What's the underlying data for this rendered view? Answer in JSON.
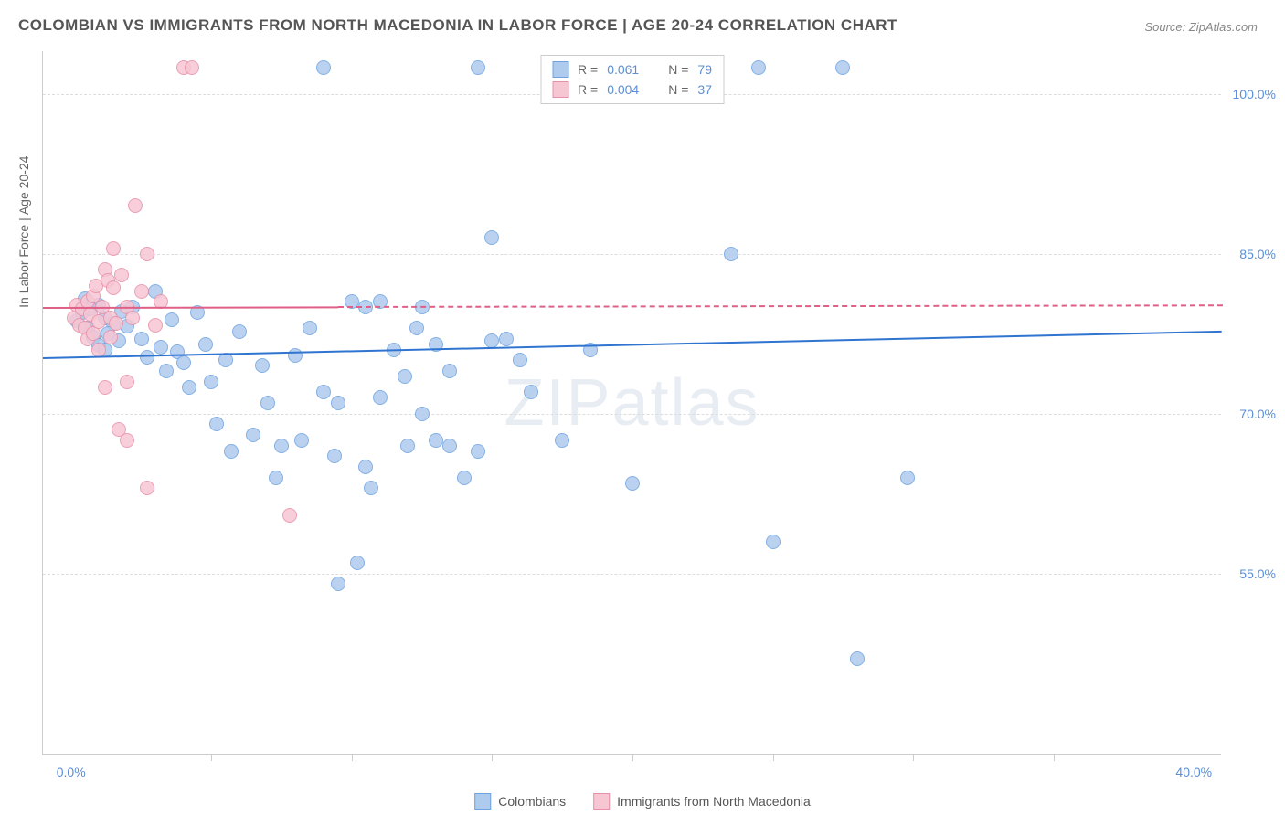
{
  "title": "COLOMBIAN VS IMMIGRANTS FROM NORTH MACEDONIA IN LABOR FORCE | AGE 20-24 CORRELATION CHART",
  "source": "Source: ZipAtlas.com",
  "watermark": "ZIPatlas",
  "yaxis_title": "In Labor Force | Age 20-24",
  "chart": {
    "type": "scatter",
    "background_color": "#ffffff",
    "grid_color": "#dddddd",
    "axis_color": "#cccccc",
    "label_color": "#5b8fd6",
    "title_color": "#555555",
    "title_fontsize": 17,
    "label_fontsize": 14,
    "xlim": [
      -1,
      41
    ],
    "ylim": [
      38,
      104
    ],
    "x_ticks": [
      0,
      40
    ],
    "x_tick_labels": [
      "0.0%",
      "40.0%"
    ],
    "x_minor_ticks": [
      5,
      10,
      15,
      20,
      25,
      30,
      35
    ],
    "y_ticks": [
      55,
      70,
      85,
      100
    ],
    "y_tick_labels": [
      "55.0%",
      "70.0%",
      "85.0%",
      "100.0%"
    ],
    "marker_radius": 8,
    "marker_border_width": 1.5,
    "marker_fill_opacity": 0.35
  },
  "series": [
    {
      "name": "Colombians",
      "color_border": "#6fa3e0",
      "color_fill": "#aecbee",
      "R": "0.061",
      "N": "79",
      "trend": {
        "x0": -1,
        "y0": 75.3,
        "x1": 41,
        "y1": 77.8,
        "solid_until_x": 41,
        "color": "#2f74d0"
      },
      "points": [
        [
          0.2,
          78.7
        ],
        [
          0.4,
          79.5
        ],
        [
          0.6,
          78.0
        ],
        [
          0.8,
          77.2
        ],
        [
          1.0,
          76.4
        ],
        [
          1.2,
          79.0
        ],
        [
          1.0,
          80.2
        ],
        [
          1.5,
          78.5
        ],
        [
          1.2,
          76.0
        ],
        [
          1.7,
          76.8
        ],
        [
          1.8,
          79.6
        ],
        [
          2.0,
          78.2
        ],
        [
          2.2,
          80.0
        ],
        [
          2.5,
          77.0
        ],
        [
          2.7,
          75.3
        ],
        [
          3.0,
          81.5
        ],
        [
          3.2,
          76.2
        ],
        [
          3.4,
          74.0
        ],
        [
          3.6,
          78.8
        ],
        [
          3.8,
          75.8
        ],
        [
          4.0,
          74.8
        ],
        [
          4.2,
          72.5
        ],
        [
          4.5,
          79.5
        ],
        [
          4.8,
          76.5
        ],
        [
          5.0,
          73.0
        ],
        [
          5.2,
          69.0
        ],
        [
          5.5,
          75.0
        ],
        [
          5.7,
          66.5
        ],
        [
          6.0,
          77.7
        ],
        [
          6.5,
          68.0
        ],
        [
          6.8,
          74.5
        ],
        [
          7.0,
          71.0
        ],
        [
          7.3,
          64.0
        ],
        [
          7.5,
          67.0
        ],
        [
          8.0,
          75.5
        ],
        [
          8.2,
          67.5
        ],
        [
          8.5,
          78.0
        ],
        [
          9.0,
          72.0
        ],
        [
          9.0,
          102.5
        ],
        [
          9.4,
          66.0
        ],
        [
          9.5,
          71.0
        ],
        [
          9.5,
          54.0
        ],
        [
          10.0,
          80.5
        ],
        [
          10.2,
          56.0
        ],
        [
          10.5,
          65.0
        ],
        [
          10.5,
          80.0
        ],
        [
          10.7,
          63.0
        ],
        [
          11.0,
          80.5
        ],
        [
          11.0,
          71.5
        ],
        [
          11.5,
          76.0
        ],
        [
          11.9,
          73.5
        ],
        [
          12.0,
          67.0
        ],
        [
          12.3,
          78.0
        ],
        [
          12.5,
          80.0
        ],
        [
          12.5,
          70.0
        ],
        [
          13.0,
          67.5
        ],
        [
          13.0,
          76.5
        ],
        [
          13.5,
          74.0
        ],
        [
          13.5,
          67.0
        ],
        [
          14.0,
          64.0
        ],
        [
          14.5,
          66.5
        ],
        [
          14.5,
          102.5
        ],
        [
          15.0,
          76.8
        ],
        [
          15.0,
          86.5
        ],
        [
          15.5,
          77.0
        ],
        [
          16.0,
          75.0
        ],
        [
          16.4,
          72.0
        ],
        [
          17.5,
          67.5
        ],
        [
          18.5,
          76.0
        ],
        [
          20.0,
          63.5
        ],
        [
          23.5,
          85.0
        ],
        [
          24.5,
          102.5
        ],
        [
          25.0,
          58.0
        ],
        [
          27.5,
          102.5
        ],
        [
          28.0,
          47.0
        ],
        [
          29.8,
          64.0
        ],
        [
          0.5,
          80.8
        ],
        [
          0.7,
          79.8
        ],
        [
          1.3,
          77.5
        ]
      ]
    },
    {
      "name": "Immigrants from North Macedonia",
      "color_border": "#e890a8",
      "color_fill": "#f6c6d3",
      "R": "0.004",
      "N": "37",
      "trend": {
        "x0": -1,
        "y0": 80.0,
        "x1": 41,
        "y1": 80.2,
        "solid_until_x": 9.5,
        "color": "#e05f86"
      },
      "points": [
        [
          0.1,
          79.0
        ],
        [
          0.2,
          80.2
        ],
        [
          0.3,
          78.3
        ],
        [
          0.4,
          79.8
        ],
        [
          0.5,
          78.0
        ],
        [
          0.6,
          80.5
        ],
        [
          0.6,
          77.0
        ],
        [
          0.7,
          79.3
        ],
        [
          0.8,
          81.0
        ],
        [
          0.8,
          77.5
        ],
        [
          0.9,
          82.0
        ],
        [
          1.0,
          78.6
        ],
        [
          1.0,
          76.0
        ],
        [
          1.1,
          80.0
        ],
        [
          1.2,
          83.5
        ],
        [
          1.2,
          72.5
        ],
        [
          1.3,
          82.5
        ],
        [
          1.4,
          79.0
        ],
        [
          1.5,
          81.8
        ],
        [
          1.5,
          85.5
        ],
        [
          1.6,
          78.5
        ],
        [
          1.7,
          68.5
        ],
        [
          1.8,
          83.0
        ],
        [
          2.0,
          80.0
        ],
        [
          2.0,
          73.0
        ],
        [
          2.0,
          67.5
        ],
        [
          2.2,
          79.0
        ],
        [
          2.3,
          89.5
        ],
        [
          2.5,
          81.5
        ],
        [
          2.7,
          85.0
        ],
        [
          2.7,
          63.0
        ],
        [
          3.0,
          78.3
        ],
        [
          3.2,
          80.5
        ],
        [
          4.0,
          102.5
        ],
        [
          4.3,
          102.5
        ],
        [
          7.8,
          60.5
        ],
        [
          1.4,
          77.2
        ]
      ]
    }
  ],
  "legend_top": {
    "R_label": "R =",
    "N_label": "N ="
  },
  "legend_bottom": {
    "items": [
      "Colombians",
      "Immigrants from North Macedonia"
    ]
  }
}
